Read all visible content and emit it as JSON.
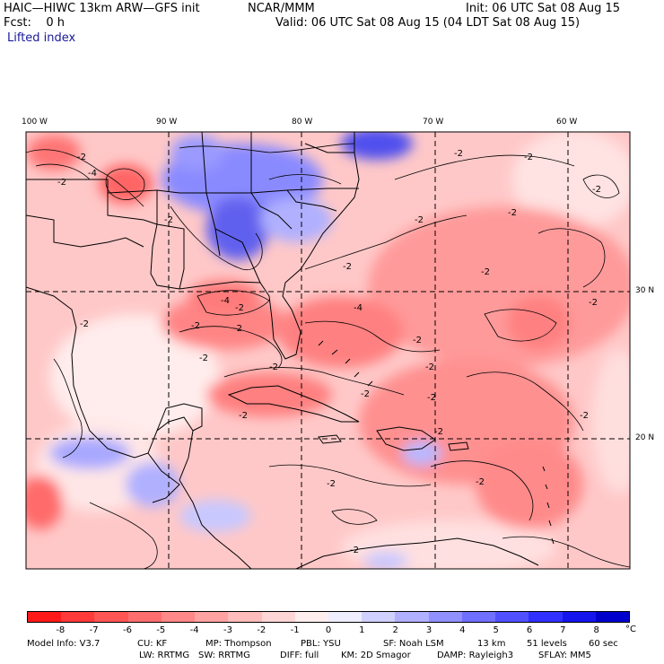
{
  "header": {
    "model": "HAIC—HIWC 13km ARW—GFS init",
    "org": "NCAR/MMM",
    "fcst": "Fcst:    0 h",
    "field": "Lifted index",
    "init": "Init: 06 UTC Sat 08 Aug 15",
    "valid": "Valid: 06 UTC Sat 08 Aug 15 (04 LDT Sat 08 Aug 15)"
  },
  "map": {
    "lon_labels": [
      "100 W",
      "90 W",
      "80 W",
      "70 W",
      "60 W"
    ],
    "lat_labels": [
      "30 N",
      "20 N"
    ],
    "contour_labels": [
      "-2",
      "-2",
      "-4",
      "-2",
      "-2",
      "-2",
      "-2",
      "-2",
      "-2",
      "-4",
      "-2",
      "-2",
      "-2",
      "-2",
      "-2",
      "-4",
      "-2",
      "-2",
      "-2",
      "-2",
      "-2",
      "-2",
      "-2",
      "-2",
      "-2",
      "-2",
      "-2",
      "-2",
      "-2",
      "-2"
    ]
  },
  "colorbar": {
    "labels": [
      "-8",
      "-7",
      "-6",
      "-5",
      "-4",
      "-3",
      "-2",
      "-1",
      "0",
      "1",
      "2",
      "3",
      "4",
      "5",
      "6",
      "7",
      "8"
    ],
    "unit": "°C",
    "colors": [
      "#ff1a1a",
      "#ff3a3a",
      "#ff5555",
      "#ff6e6e",
      "#ff8888",
      "#ffa2a2",
      "#ffbcbc",
      "#ffd6d6",
      "#ffeeee",
      "#eeeeff",
      "#d0d0ff",
      "#b0b0ff",
      "#9090ff",
      "#7070ff",
      "#5050ff",
      "#3030ff",
      "#1515ee",
      "#0000cc"
    ]
  },
  "footer": {
    "line1": [
      "Model Info: V3.7",
      "CU: KF",
      "MP: Thompson",
      "PBL: YSU",
      "SF: Noah LSM",
      "13 km",
      "51 levels",
      "60 sec"
    ],
    "line2": [
      "LW: RRTMG",
      "SW: RRTMG",
      "DIFF: full",
      "KM: 2D Smagor",
      "DAMP: Rayleigh3",
      "SFLAY: MM5"
    ]
  }
}
